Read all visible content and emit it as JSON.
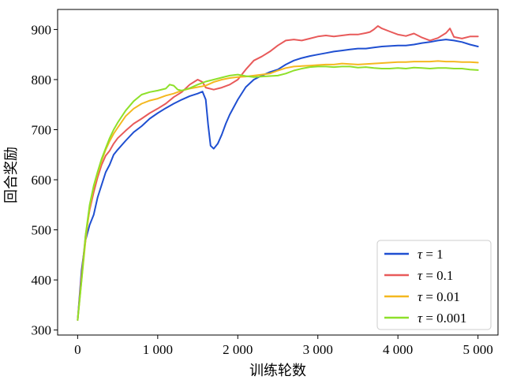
{
  "chart_data": {
    "type": "line",
    "title": "",
    "xlabel": "训练轮数",
    "ylabel": "回合奖励",
    "xlim": [
      -250,
      5250
    ],
    "ylim": [
      290,
      940
    ],
    "xticks": [
      0,
      1000,
      2000,
      3000,
      4000,
      5000
    ],
    "xtick_labels": [
      "0",
      "1 000",
      "2 000",
      "3 000",
      "4 000",
      "5 000"
    ],
    "yticks": [
      300,
      400,
      500,
      600,
      700,
      800,
      900
    ],
    "ytick_labels": [
      "300",
      "400",
      "500",
      "600",
      "700",
      "800",
      "900"
    ],
    "grid": false,
    "legend_position": "lower-right",
    "series": [
      {
        "name": "τ = 1",
        "color": "#1f4fd1",
        "points": [
          [
            0,
            320
          ],
          [
            50,
            420
          ],
          [
            100,
            480
          ],
          [
            150,
            510
          ],
          [
            200,
            530
          ],
          [
            250,
            565
          ],
          [
            300,
            590
          ],
          [
            350,
            615
          ],
          [
            400,
            630
          ],
          [
            450,
            650
          ],
          [
            500,
            660
          ],
          [
            600,
            678
          ],
          [
            700,
            695
          ],
          [
            800,
            707
          ],
          [
            900,
            722
          ],
          [
            1000,
            733
          ],
          [
            1100,
            743
          ],
          [
            1200,
            752
          ],
          [
            1300,
            760
          ],
          [
            1400,
            767
          ],
          [
            1500,
            772
          ],
          [
            1560,
            776
          ],
          [
            1600,
            760
          ],
          [
            1630,
            710
          ],
          [
            1660,
            668
          ],
          [
            1700,
            662
          ],
          [
            1750,
            672
          ],
          [
            1800,
            690
          ],
          [
            1850,
            712
          ],
          [
            1900,
            730
          ],
          [
            1950,
            745
          ],
          [
            2000,
            760
          ],
          [
            2100,
            785
          ],
          [
            2200,
            800
          ],
          [
            2300,
            808
          ],
          [
            2400,
            815
          ],
          [
            2500,
            820
          ],
          [
            2600,
            830
          ],
          [
            2700,
            838
          ],
          [
            2800,
            843
          ],
          [
            2900,
            847
          ],
          [
            3000,
            850
          ],
          [
            3100,
            853
          ],
          [
            3200,
            856
          ],
          [
            3300,
            858
          ],
          [
            3400,
            860
          ],
          [
            3500,
            862
          ],
          [
            3600,
            862
          ],
          [
            3700,
            864
          ],
          [
            3800,
            866
          ],
          [
            3900,
            867
          ],
          [
            4000,
            868
          ],
          [
            4100,
            868
          ],
          [
            4200,
            870
          ],
          [
            4300,
            873
          ],
          [
            4400,
            875
          ],
          [
            4500,
            878
          ],
          [
            4600,
            880
          ],
          [
            4700,
            878
          ],
          [
            4800,
            875
          ],
          [
            4900,
            870
          ],
          [
            5000,
            866
          ]
        ]
      },
      {
        "name": "τ = 0.1",
        "color": "#e85a5a",
        "points": [
          [
            0,
            320
          ],
          [
            50,
            410
          ],
          [
            100,
            490
          ],
          [
            150,
            540
          ],
          [
            200,
            575
          ],
          [
            250,
            605
          ],
          [
            300,
            630
          ],
          [
            350,
            648
          ],
          [
            400,
            658
          ],
          [
            450,
            672
          ],
          [
            500,
            683
          ],
          [
            600,
            698
          ],
          [
            700,
            712
          ],
          [
            800,
            722
          ],
          [
            900,
            733
          ],
          [
            1000,
            742
          ],
          [
            1100,
            752
          ],
          [
            1200,
            765
          ],
          [
            1300,
            775
          ],
          [
            1400,
            790
          ],
          [
            1500,
            800
          ],
          [
            1560,
            795
          ],
          [
            1600,
            784
          ],
          [
            1700,
            780
          ],
          [
            1800,
            784
          ],
          [
            1900,
            790
          ],
          [
            2000,
            800
          ],
          [
            2100,
            820
          ],
          [
            2200,
            838
          ],
          [
            2300,
            846
          ],
          [
            2400,
            856
          ],
          [
            2500,
            868
          ],
          [
            2600,
            878
          ],
          [
            2700,
            880
          ],
          [
            2800,
            878
          ],
          [
            2900,
            882
          ],
          [
            3000,
            886
          ],
          [
            3100,
            888
          ],
          [
            3200,
            886
          ],
          [
            3300,
            888
          ],
          [
            3400,
            890
          ],
          [
            3500,
            890
          ],
          [
            3600,
            893
          ],
          [
            3650,
            895
          ],
          [
            3700,
            900
          ],
          [
            3750,
            907
          ],
          [
            3800,
            902
          ],
          [
            3900,
            896
          ],
          [
            4000,
            890
          ],
          [
            4100,
            887
          ],
          [
            4200,
            892
          ],
          [
            4300,
            884
          ],
          [
            4400,
            878
          ],
          [
            4500,
            883
          ],
          [
            4600,
            893
          ],
          [
            4650,
            902
          ],
          [
            4700,
            885
          ],
          [
            4800,
            882
          ],
          [
            4900,
            886
          ],
          [
            5000,
            886
          ]
        ]
      },
      {
        "name": "τ = 0.01",
        "color": "#f4b81f",
        "points": [
          [
            0,
            320
          ],
          [
            50,
            400
          ],
          [
            100,
            480
          ],
          [
            150,
            545
          ],
          [
            200,
            585
          ],
          [
            250,
            612
          ],
          [
            300,
            638
          ],
          [
            350,
            660
          ],
          [
            400,
            677
          ],
          [
            450,
            692
          ],
          [
            500,
            704
          ],
          [
            600,
            727
          ],
          [
            700,
            742
          ],
          [
            800,
            752
          ],
          [
            900,
            758
          ],
          [
            1000,
            762
          ],
          [
            1100,
            768
          ],
          [
            1200,
            772
          ],
          [
            1300,
            778
          ],
          [
            1400,
            782
          ],
          [
            1500,
            785
          ],
          [
            1600,
            788
          ],
          [
            1700,
            795
          ],
          [
            1800,
            800
          ],
          [
            1900,
            803
          ],
          [
            2000,
            805
          ],
          [
            2100,
            806
          ],
          [
            2200,
            808
          ],
          [
            2300,
            810
          ],
          [
            2400,
            812
          ],
          [
            2500,
            818
          ],
          [
            2600,
            823
          ],
          [
            2700,
            826
          ],
          [
            2800,
            827
          ],
          [
            2900,
            828
          ],
          [
            3000,
            829
          ],
          [
            3100,
            830
          ],
          [
            3200,
            830
          ],
          [
            3300,
            832
          ],
          [
            3400,
            831
          ],
          [
            3500,
            830
          ],
          [
            3600,
            831
          ],
          [
            3700,
            832
          ],
          [
            3800,
            833
          ],
          [
            3900,
            834
          ],
          [
            4000,
            835
          ],
          [
            4100,
            835
          ],
          [
            4200,
            836
          ],
          [
            4300,
            836
          ],
          [
            4400,
            836
          ],
          [
            4500,
            837
          ],
          [
            4600,
            836
          ],
          [
            4700,
            836
          ],
          [
            4800,
            835
          ],
          [
            4900,
            835
          ],
          [
            5000,
            834
          ]
        ]
      },
      {
        "name": "τ = 0.001",
        "color": "#8ee02a",
        "points": [
          [
            0,
            320
          ],
          [
            50,
            400
          ],
          [
            100,
            490
          ],
          [
            150,
            550
          ],
          [
            200,
            588
          ],
          [
            250,
            616
          ],
          [
            300,
            642
          ],
          [
            350,
            663
          ],
          [
            400,
            683
          ],
          [
            450,
            700
          ],
          [
            500,
            714
          ],
          [
            600,
            738
          ],
          [
            700,
            757
          ],
          [
            800,
            770
          ],
          [
            900,
            775
          ],
          [
            1000,
            778
          ],
          [
            1100,
            782
          ],
          [
            1150,
            790
          ],
          [
            1200,
            788
          ],
          [
            1250,
            780
          ],
          [
            1300,
            778
          ],
          [
            1400,
            783
          ],
          [
            1500,
            790
          ],
          [
            1600,
            796
          ],
          [
            1700,
            800
          ],
          [
            1800,
            804
          ],
          [
            1900,
            808
          ],
          [
            2000,
            810
          ],
          [
            2100,
            807
          ],
          [
            2200,
            805
          ],
          [
            2300,
            806
          ],
          [
            2400,
            807
          ],
          [
            2500,
            808
          ],
          [
            2600,
            812
          ],
          [
            2700,
            818
          ],
          [
            2800,
            822
          ],
          [
            2900,
            825
          ],
          [
            3000,
            826
          ],
          [
            3100,
            826
          ],
          [
            3200,
            825
          ],
          [
            3300,
            826
          ],
          [
            3400,
            826
          ],
          [
            3500,
            824
          ],
          [
            3600,
            825
          ],
          [
            3700,
            823
          ],
          [
            3800,
            822
          ],
          [
            3900,
            822
          ],
          [
            4000,
            823
          ],
          [
            4100,
            822
          ],
          [
            4200,
            824
          ],
          [
            4300,
            823
          ],
          [
            4400,
            822
          ],
          [
            4500,
            823
          ],
          [
            4600,
            823
          ],
          [
            4700,
            822
          ],
          [
            4800,
            822
          ],
          [
            4900,
            820
          ],
          [
            5000,
            819
          ]
        ]
      }
    ]
  }
}
